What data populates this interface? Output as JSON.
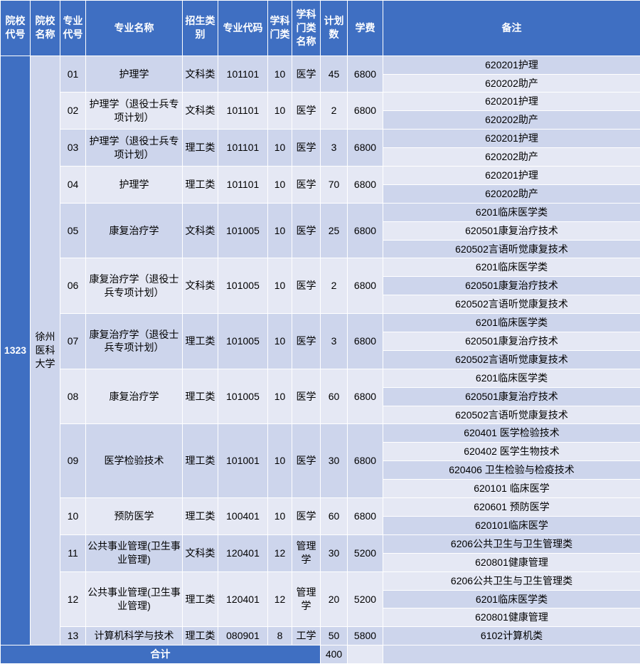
{
  "headers": [
    "院校代号",
    "院校名称",
    "专业代号",
    "专业名称",
    "招生类别",
    "专业代码",
    "学科门类",
    "学科门类名称",
    "计划数",
    "学费",
    "备注"
  ],
  "schoolCode": "1323",
  "schoolName": "徐州医科大学",
  "totalLabel": "合计",
  "totalPlan": "400",
  "colors": {
    "header_bg": "#3f6fc2",
    "header_fg": "#ffffff",
    "row_even": "#cdd5ec",
    "row_odd": "#e5e8f4",
    "border": "#ffffff"
  },
  "rows": [
    {
      "majorNo": "01",
      "majorName": "护理学",
      "cat": "文科类",
      "pcode": "101101",
      "discCode": "10",
      "discName": "医学",
      "plan": "45",
      "fee": "6800",
      "remarks": [
        "620201护理",
        "620202助产"
      ]
    },
    {
      "majorNo": "02",
      "majorName": "护理学（退役士兵专项计划）",
      "cat": "文科类",
      "pcode": "101101",
      "discCode": "10",
      "discName": "医学",
      "plan": "2",
      "fee": "6800",
      "remarks": [
        "620201护理",
        "620202助产"
      ]
    },
    {
      "majorNo": "03",
      "majorName": "护理学（退役士兵专项计划）",
      "cat": "理工类",
      "pcode": "101101",
      "discCode": "10",
      "discName": "医学",
      "plan": "3",
      "fee": "6800",
      "remarks": [
        "620201护理",
        "620202助产"
      ]
    },
    {
      "majorNo": "04",
      "majorName": "护理学",
      "cat": "理工类",
      "pcode": "101101",
      "discCode": "10",
      "discName": "医学",
      "plan": "70",
      "fee": "6800",
      "remarks": [
        "620201护理",
        "620202助产"
      ]
    },
    {
      "majorNo": "05",
      "majorName": "康复治疗学",
      "cat": "文科类",
      "pcode": "101005",
      "discCode": "10",
      "discName": "医学",
      "plan": "25",
      "fee": "6800",
      "remarks": [
        "6201临床医学类",
        "620501康复治疗技术",
        "620502言语听觉康复技术"
      ]
    },
    {
      "majorNo": "06",
      "majorName": "康复治疗学（退役士兵专项计划）",
      "cat": "文科类",
      "pcode": "101005",
      "discCode": "10",
      "discName": "医学",
      "plan": "2",
      "fee": "6800",
      "remarks": [
        "6201临床医学类",
        "620501康复治疗技术",
        "620502言语听觉康复技术"
      ]
    },
    {
      "majorNo": "07",
      "majorName": "康复治疗学（退役士兵专项计划）",
      "cat": "理工类",
      "pcode": "101005",
      "discCode": "10",
      "discName": "医学",
      "plan": "3",
      "fee": "6800",
      "remarks": [
        "6201临床医学类",
        "620501康复治疗技术",
        "620502言语听觉康复技术"
      ]
    },
    {
      "majorNo": "08",
      "majorName": "康复治疗学",
      "cat": "理工类",
      "pcode": "101005",
      "discCode": "10",
      "discName": "医学",
      "plan": "60",
      "fee": "6800",
      "remarks": [
        "6201临床医学类",
        "620501康复治疗技术",
        "620502言语听觉康复技术"
      ]
    },
    {
      "majorNo": "09",
      "majorName": "医学检验技术",
      "cat": "理工类",
      "pcode": "101001",
      "discCode": "10",
      "discName": "医学",
      "plan": "30",
      "fee": "6800",
      "remarks": [
        "620401 医学检验技术",
        "620402 医学生物技术",
        "620406 卫生检验与检疫技术",
        "620101 临床医学"
      ]
    },
    {
      "majorNo": "10",
      "majorName": "预防医学",
      "cat": "理工类",
      "pcode": "100401",
      "discCode": "10",
      "discName": "医学",
      "plan": "60",
      "fee": "6800",
      "remarks": [
        "620601 预防医学",
        "620101临床医学"
      ]
    },
    {
      "majorNo": "11",
      "majorName": "公共事业管理(卫生事业管理)",
      "cat": "文科类",
      "pcode": "120401",
      "discCode": "12",
      "discName": "管理学",
      "plan": "30",
      "fee": "5200",
      "remarks": [
        "6206公共卫生与卫生管理类",
        "620801健康管理"
      ]
    },
    {
      "majorNo": "12",
      "majorName": "公共事业管理(卫生事业管理)",
      "cat": "理工类",
      "pcode": "120401",
      "discCode": "12",
      "discName": "管理学",
      "plan": "20",
      "fee": "5200",
      "remarks": [
        "6206公共卫生与卫生管理类",
        "6201临床医学类",
        "620801健康管理"
      ]
    },
    {
      "majorNo": "13",
      "majorName": "计算机科学与技术",
      "cat": "理工类",
      "pcode": "080901",
      "discCode": "8",
      "discName": "工学",
      "plan": "50",
      "fee": "5800",
      "remarks": [
        "6102计算机类"
      ]
    }
  ]
}
